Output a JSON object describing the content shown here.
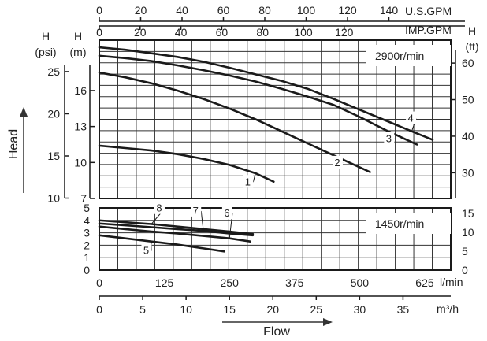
{
  "chart_data": [
    {
      "id": "upper",
      "type": "line",
      "speed_label": "2900r/min",
      "x_unit": "l/min",
      "y_unit": "m",
      "xlim": [
        0,
        675
      ],
      "ylim": [
        7,
        20.2
      ],
      "series": [
        {
          "name": "1",
          "x": [
            0,
            50,
            100,
            150,
            200,
            250,
            300,
            335
          ],
          "y": [
            11.4,
            11.2,
            11.0,
            10.7,
            10.3,
            9.8,
            9.1,
            8.4
          ]
        },
        {
          "name": "2",
          "x": [
            0,
            50,
            100,
            150,
            200,
            250,
            300,
            350,
            400,
            450,
            500,
            520
          ],
          "y": [
            17.5,
            17.1,
            16.6,
            16.0,
            15.3,
            14.5,
            13.6,
            12.6,
            11.6,
            10.6,
            9.6,
            9.2
          ]
        },
        {
          "name": "3",
          "x": [
            0,
            50,
            100,
            150,
            200,
            250,
            300,
            350,
            400,
            450,
            500,
            550,
            600,
            610
          ],
          "y": [
            18.9,
            18.7,
            18.45,
            18.1,
            17.7,
            17.25,
            16.75,
            16.15,
            15.5,
            14.8,
            13.8,
            12.7,
            11.7,
            11.5
          ]
        },
        {
          "name": "4",
          "x": [
            0,
            50,
            100,
            150,
            200,
            250,
            300,
            350,
            400,
            450,
            500,
            550,
            600,
            640
          ],
          "y": [
            19.6,
            19.4,
            19.1,
            18.8,
            18.4,
            17.9,
            17.35,
            16.8,
            16.15,
            15.3,
            14.4,
            13.5,
            12.6,
            11.9
          ]
        }
      ],
      "curve_labels": [
        {
          "text": "1",
          "x": 285,
          "y": 8.1
        },
        {
          "text": "2",
          "x": 457,
          "y": 9.7
        },
        {
          "text": "3",
          "x": 556,
          "y": 11.7
        },
        {
          "text": "4",
          "x": 598,
          "y": 13.4
        }
      ],
      "left_ticks_m": [
        7,
        10,
        13,
        16
      ],
      "left_ticks_psi": [
        10,
        15,
        20,
        25
      ],
      "right_ticks_ft": [
        30,
        40,
        50,
        60
      ]
    },
    {
      "id": "lower",
      "type": "line",
      "speed_label": "1450r/min",
      "x_unit": "l/min",
      "y_unit": "m",
      "xlim": [
        0,
        675
      ],
      "ylim": [
        0,
        5
      ],
      "series": [
        {
          "name": "5",
          "x": [
            0,
            50,
            100,
            150,
            200,
            240
          ],
          "y": [
            2.8,
            2.55,
            2.3,
            2.05,
            1.75,
            1.5
          ]
        },
        {
          "name": "6",
          "x": [
            0,
            50,
            100,
            150,
            200,
            250,
            290
          ],
          "y": [
            3.5,
            3.3,
            3.1,
            2.95,
            2.75,
            2.55,
            2.3
          ]
        },
        {
          "name": "7",
          "x": [
            0,
            50,
            100,
            150,
            200,
            250,
            295
          ],
          "y": [
            3.75,
            3.6,
            3.45,
            3.3,
            3.15,
            2.95,
            2.8
          ]
        },
        {
          "name": "8",
          "x": [
            0,
            50,
            100,
            150,
            200,
            250,
            295
          ],
          "y": [
            4.0,
            3.85,
            3.7,
            3.5,
            3.3,
            3.1,
            2.9
          ]
        }
      ],
      "curve_labels": [
        {
          "text": "5",
          "x": 90,
          "y": 1.3
        },
        {
          "text": "6",
          "x": 245,
          "y": 4.3
        },
        {
          "text": "7",
          "x": 185,
          "y": 4.5
        },
        {
          "text": "8",
          "x": 115,
          "y": 4.7
        }
      ],
      "left_ticks_m": [
        0,
        1,
        2,
        3,
        4,
        5
      ],
      "right_ticks_ft": [
        0,
        5,
        10,
        15
      ]
    }
  ],
  "axes": {
    "usgpm": {
      "unit": "U.S.GPM",
      "ticks": [
        0,
        20,
        40,
        60,
        80,
        100,
        120,
        140
      ]
    },
    "impgpm": {
      "unit": "IMP.GPM",
      "ticks": [
        0,
        20,
        40,
        60,
        80,
        100,
        120
      ]
    },
    "lmin": {
      "unit": "l/min",
      "ticks": [
        0,
        125,
        250,
        375,
        500,
        625
      ]
    },
    "m3h": {
      "unit": "m³/h",
      "ticks": [
        0,
        5,
        10,
        15,
        20,
        25,
        30,
        35
      ]
    }
  },
  "labels": {
    "head": "Head",
    "flow": "Flow",
    "h_psi_top": "H",
    "h_psi_bottom": "(psi)",
    "h_m_top": "H",
    "h_m_bottom": "(m)",
    "h_ft_top": "H",
    "h_ft_bottom": "(ft)"
  },
  "colors": {
    "curve": "#1a1a1a",
    "grid": "#333333",
    "frame": "#1a1a1a"
  }
}
